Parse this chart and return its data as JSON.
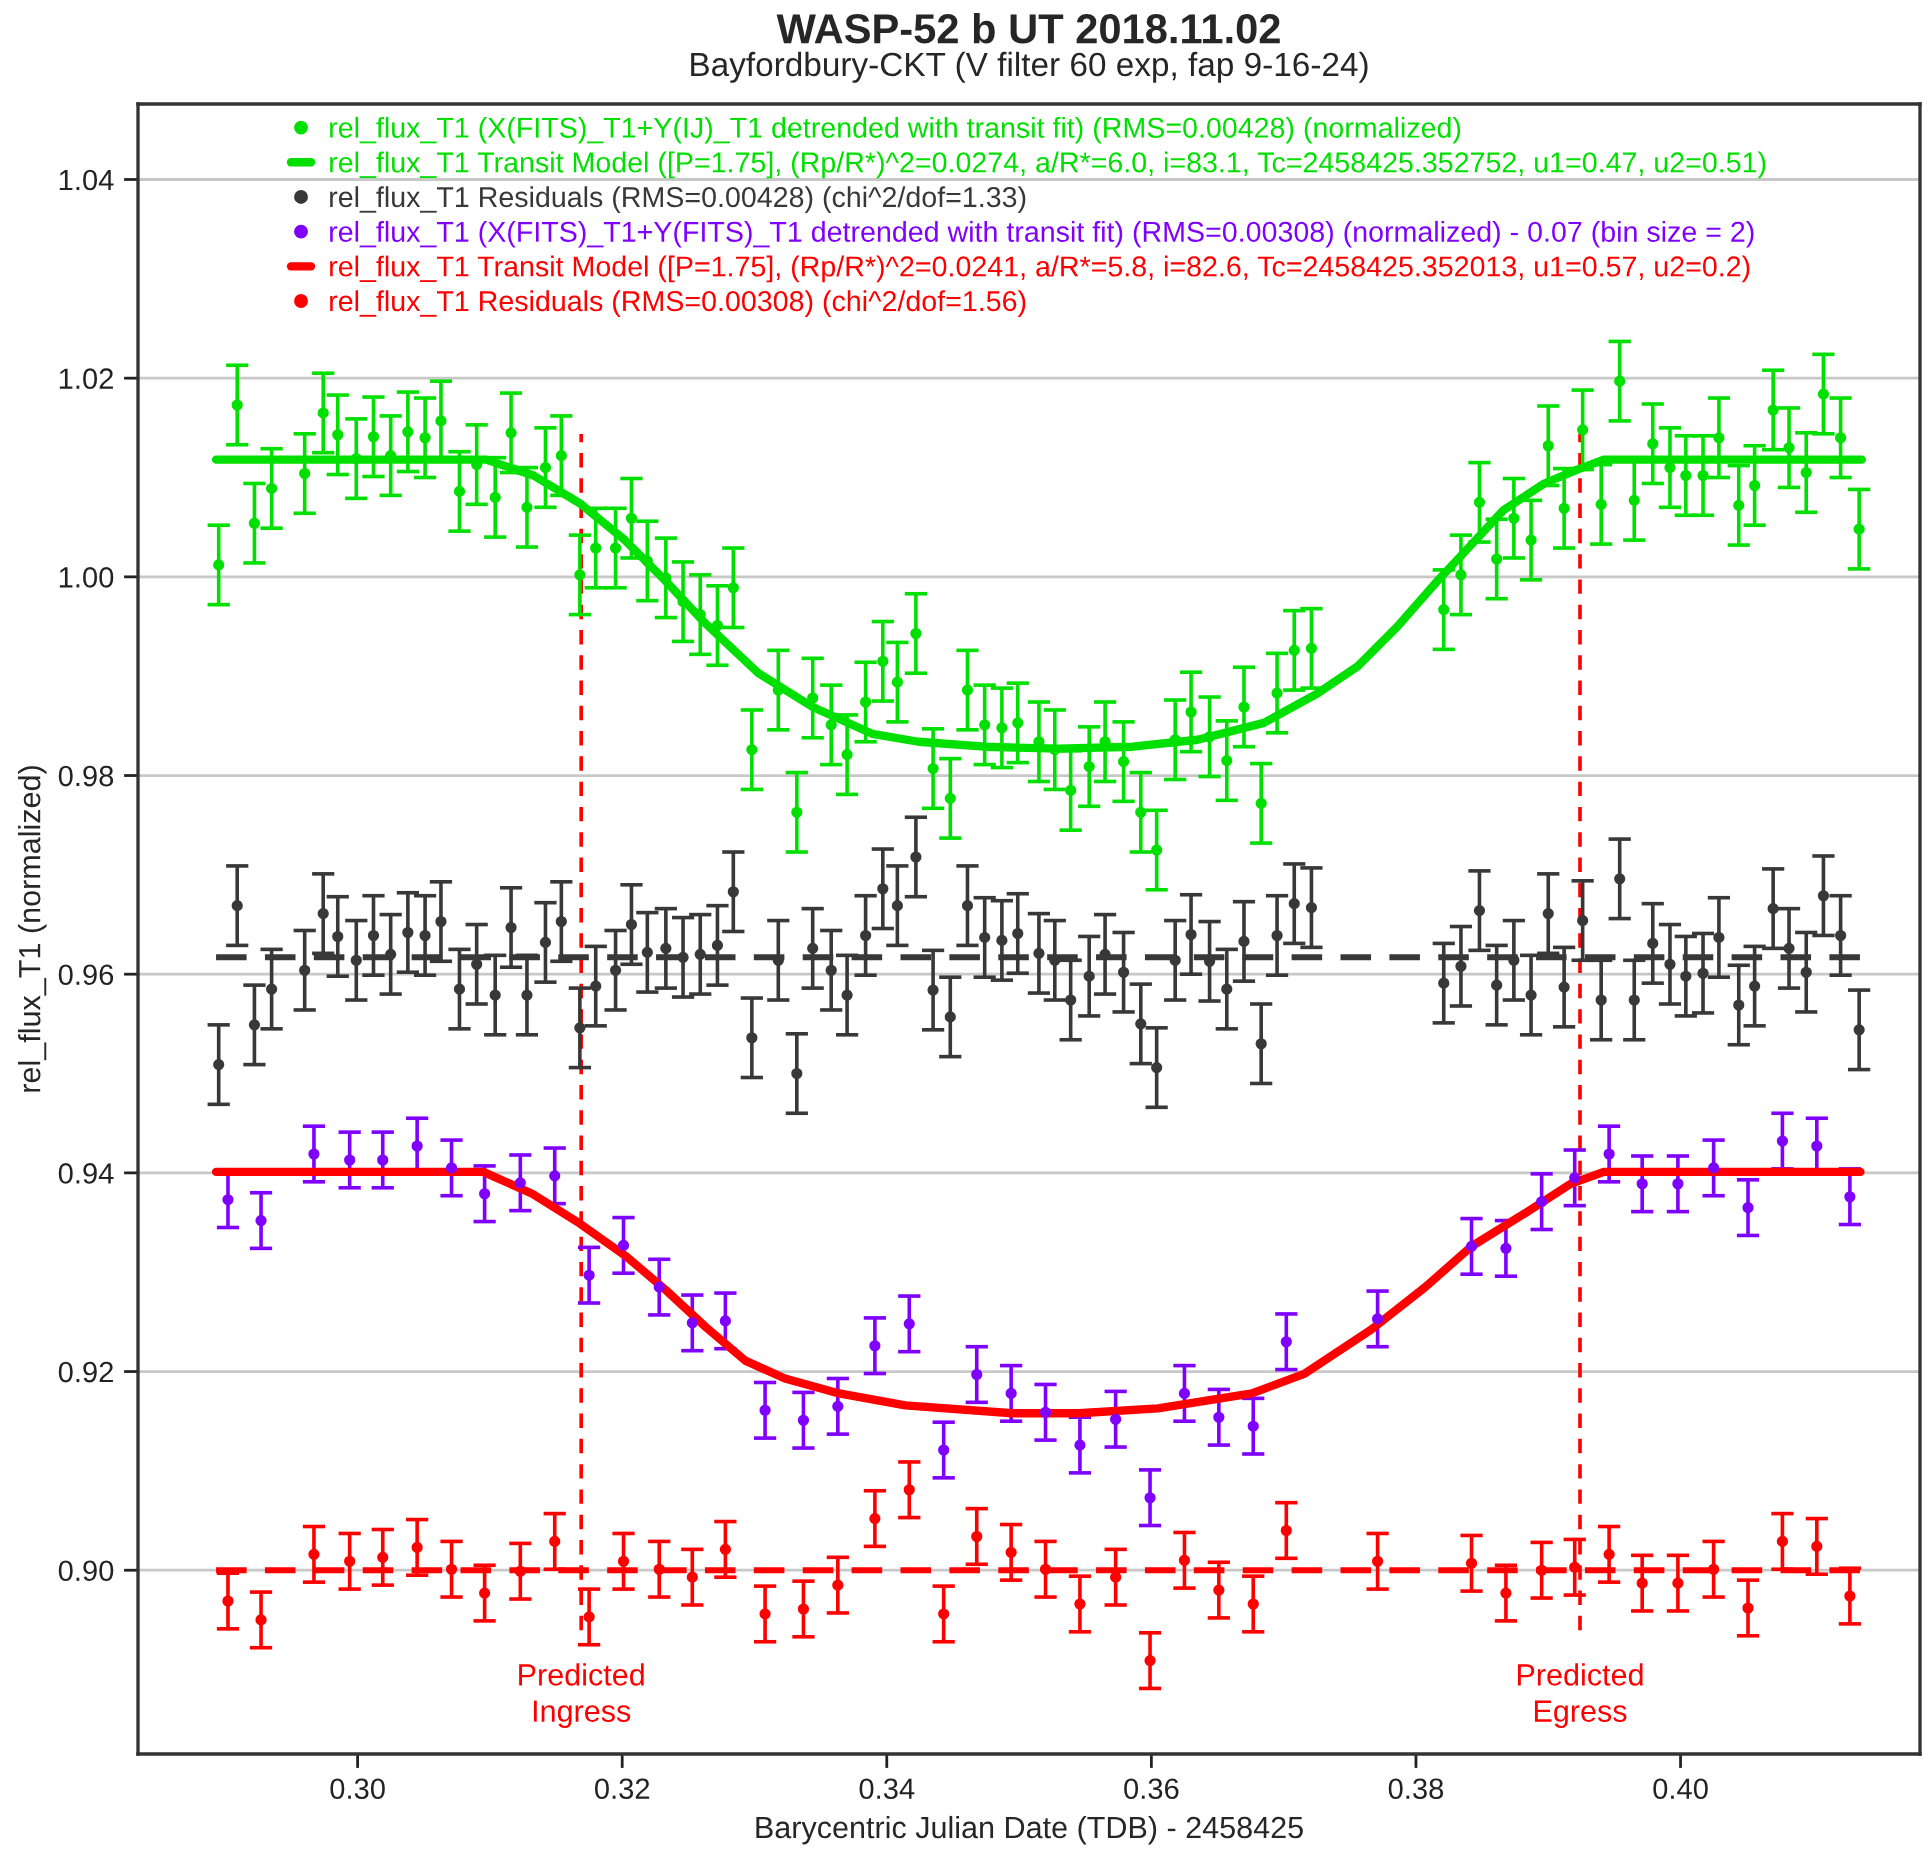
{
  "chart_data": {
    "type": "scatter",
    "title": "WASP-52 b UT 2018.11.02",
    "subtitle": "Bayfordbury-CKT (V filter 60 exp, fap 9-16-24)",
    "xlabel": "Barycentric Julian Date (TDB) - 2458425",
    "ylabel": "rel_flux_T1 (normalized)",
    "xlim": [
      0.2834,
      0.4181
    ],
    "ylim": [
      0.8815,
      1.0476
    ],
    "xticks": [
      {
        "value": 0.3,
        "label": "0.30"
      },
      {
        "value": 0.32,
        "label": "0.32"
      },
      {
        "value": 0.34,
        "label": "0.34"
      },
      {
        "value": 0.36,
        "label": "0.36"
      },
      {
        "value": 0.38,
        "label": "0.38"
      },
      {
        "value": 0.4,
        "label": "0.40"
      }
    ],
    "yticks": [
      {
        "value": 0.9,
        "label": "0.90"
      },
      {
        "value": 0.92,
        "label": "0.92"
      },
      {
        "value": 0.94,
        "label": "0.94"
      },
      {
        "value": 0.96,
        "label": "0.96"
      },
      {
        "value": 0.98,
        "label": "0.98"
      },
      {
        "value": 1.0,
        "label": "1.00"
      },
      {
        "value": 1.02,
        "label": "1.02"
      },
      {
        "value": 1.04,
        "label": "1.04"
      }
    ],
    "grid": "y",
    "legend": "top",
    "ref_lines": [
      {
        "axis": "x",
        "value": 0.3169,
        "label": "Predicted\nIngress",
        "color": "#ff0000",
        "line_style": "dashed"
      },
      {
        "axis": "x",
        "value": 0.3924,
        "label": "Predicted\nEgress",
        "color": "#ff0000",
        "line_style": "dashed"
      }
    ],
    "series": [
      {
        "name": "rel_flux_T1 (X(FITS)_T1+Y(IJ)_T1 detrended with transit fit) (RMS=0.00428) (normalized)",
        "marker": "circle",
        "color": "#00e000",
        "x": [
          0.2895,
          0.2909,
          0.2922,
          0.2935,
          0.296,
          0.2974,
          0.2985,
          0.2999,
          0.3012,
          0.3025,
          0.3038,
          0.3051,
          0.3063,
          0.3077,
          0.309,
          0.3104,
          0.3116,
          0.3128,
          0.3142,
          0.3154,
          0.3168,
          0.318,
          0.3195,
          0.3207,
          0.3219,
          0.3233,
          0.3246,
          0.3259,
          0.3272,
          0.3284,
          0.3298,
          0.3318,
          0.3332,
          0.3344,
          0.3358,
          0.337,
          0.3384,
          0.3397,
          0.3408,
          0.3422,
          0.3435,
          0.3448,
          0.3461,
          0.3474,
          0.3487,
          0.3499,
          0.3515,
          0.3527,
          0.3539,
          0.3553,
          0.3565,
          0.3579,
          0.3592,
          0.3604,
          0.3618,
          0.363,
          0.3644,
          0.3657,
          0.367,
          0.3683,
          0.3695,
          0.3708,
          0.3721,
          0.3821,
          0.3834,
          0.3848,
          0.3861,
          0.3874,
          0.3887,
          0.39,
          0.3912,
          0.3926,
          0.394,
          0.3954,
          0.3965,
          0.3979,
          0.3992,
          0.4004,
          0.4017,
          0.4029,
          0.4044,
          0.4056,
          0.407,
          0.4082,
          0.4095,
          0.4108,
          0.4121,
          0.4135
        ],
        "values": [
          1.0012,
          1.0173,
          1.0054,
          1.0089,
          1.0104,
          1.0165,
          1.0143,
          1.0119,
          1.0141,
          1.0122,
          1.0146,
          1.014,
          1.0157,
          1.0086,
          1.0113,
          1.008,
          1.0145,
          1.007,
          1.011,
          1.0122,
          1.0002,
          1.0029,
          1.0029,
          1.0059,
          1.0016,
          0.9999,
          0.9975,
          0.9962,
          0.9951,
          0.9989,
          0.9826,
          0.9886,
          0.9763,
          0.9878,
          0.9851,
          0.9821,
          0.9874,
          0.9915,
          0.9894,
          0.9943,
          0.9807,
          0.9777,
          0.9886,
          0.9851,
          0.9848,
          0.9853,
          0.9834,
          0.9826,
          0.9785,
          0.9809,
          0.9834,
          0.9814,
          0.9763,
          0.9725,
          0.9836,
          0.9864,
          0.9839,
          0.9815,
          0.9869,
          0.9772,
          0.9883,
          0.9926,
          0.9928,
          0.9967,
          1.0002,
          1.0075,
          1.0018,
          1.0059,
          1.0037,
          1.0132,
          1.0069,
          1.0148,
          1.0073,
          1.0197,
          1.0077,
          1.0134,
          1.011,
          1.0102,
          1.0102,
          1.014,
          1.0072,
          1.0092,
          1.0168,
          1.013,
          1.0105,
          1.0184,
          1.014,
          1.0048
        ],
        "errors": [
          0.004,
          0.004,
          0.004,
          0.004,
          0.004,
          0.004,
          0.004,
          0.004,
          0.004,
          0.004,
          0.004,
          0.004,
          0.004,
          0.004,
          0.004,
          0.004,
          0.004,
          0.004,
          0.004,
          0.004,
          0.004,
          0.004,
          0.004,
          0.004,
          0.004,
          0.004,
          0.004,
          0.004,
          0.004,
          0.004,
          0.004,
          0.004,
          0.004,
          0.004,
          0.004,
          0.004,
          0.004,
          0.004,
          0.004,
          0.004,
          0.004,
          0.004,
          0.004,
          0.004,
          0.004,
          0.004,
          0.004,
          0.004,
          0.004,
          0.004,
          0.004,
          0.004,
          0.004,
          0.004,
          0.004,
          0.004,
          0.004,
          0.004,
          0.004,
          0.004,
          0.004,
          0.004,
          0.004,
          0.004,
          0.004,
          0.004,
          0.004,
          0.004,
          0.004,
          0.004,
          0.004,
          0.004,
          0.004,
          0.004,
          0.004,
          0.004,
          0.004,
          0.004,
          0.004,
          0.004,
          0.004,
          0.004,
          0.004,
          0.004,
          0.004,
          0.004,
          0.004,
          0.004
        ]
      },
      {
        "name": "rel_flux_T1 Transit Model ([P=1.75], (Rp/R*)^2=0.0274, a/R*=6.0, i=83.1, Tc=2458425.352752, u1=0.47, u2=0.51)",
        "type": "line",
        "color": "#00e000",
        "line_style": "solid",
        "x": [
          0.2893,
          0.3097,
          0.3133,
          0.3168,
          0.3202,
          0.3232,
          0.3263,
          0.3303,
          0.3344,
          0.3389,
          0.3424,
          0.3474,
          0.353,
          0.3586,
          0.3635,
          0.3685,
          0.3726,
          0.3756,
          0.3786,
          0.3817,
          0.3836,
          0.3866,
          0.3897,
          0.3922,
          0.3942,
          0.4137
        ],
        "values": [
          1.0118,
          1.0118,
          1.0102,
          1.0074,
          1.0037,
          0.9997,
          0.9953,
          0.9903,
          0.9869,
          0.9842,
          0.9834,
          0.9829,
          0.9827,
          0.9829,
          0.9836,
          0.9853,
          0.9883,
          0.991,
          0.995,
          0.9997,
          1.0024,
          1.0067,
          1.0094,
          1.0108,
          1.0118,
          1.0118
        ]
      },
      {
        "name": "rel_flux_T1 Residuals (RMS=0.00428) (chi^2/dof=1.33)",
        "marker": "circle",
        "color": "#383838",
        "x": [
          0.2895,
          0.2909,
          0.2922,
          0.2935,
          0.296,
          0.2974,
          0.2985,
          0.2999,
          0.3012,
          0.3025,
          0.3038,
          0.3051,
          0.3063,
          0.3077,
          0.309,
          0.3104,
          0.3116,
          0.3128,
          0.3142,
          0.3154,
          0.3168,
          0.318,
          0.3195,
          0.3207,
          0.3219,
          0.3233,
          0.3246,
          0.3259,
          0.3272,
          0.3284,
          0.3298,
          0.3318,
          0.3332,
          0.3344,
          0.3358,
          0.337,
          0.3384,
          0.3397,
          0.3408,
          0.3422,
          0.3435,
          0.3448,
          0.3461,
          0.3474,
          0.3487,
          0.3499,
          0.3515,
          0.3527,
          0.3539,
          0.3553,
          0.3565,
          0.3579,
          0.3592,
          0.3604,
          0.3618,
          0.363,
          0.3644,
          0.3657,
          0.367,
          0.3683,
          0.3695,
          0.3708,
          0.3721,
          0.3821,
          0.3834,
          0.3848,
          0.3861,
          0.3874,
          0.3887,
          0.39,
          0.3912,
          0.3926,
          0.394,
          0.3954,
          0.3965,
          0.3979,
          0.3992,
          0.4004,
          0.4017,
          0.4029,
          0.4044,
          0.4056,
          0.407,
          0.4082,
          0.4095,
          0.4108,
          0.4121,
          0.4135
        ],
        "values": [
          0.9509,
          0.9669,
          0.9549,
          0.9585,
          0.9604,
          0.9661,
          0.9638,
          0.9614,
          0.9639,
          0.962,
          0.9642,
          0.9639,
          0.9653,
          0.9585,
          0.961,
          0.9579,
          0.9647,
          0.9579,
          0.9632,
          0.9653,
          0.9546,
          0.9588,
          0.9604,
          0.965,
          0.9622,
          0.9626,
          0.9617,
          0.962,
          0.9629,
          0.9683,
          0.9536,
          0.9614,
          0.95,
          0.9626,
          0.9604,
          0.9579,
          0.9639,
          0.9686,
          0.9669,
          0.9718,
          0.9584,
          0.9557,
          0.9669,
          0.9637,
          0.9634,
          0.9641,
          0.9621,
          0.9614,
          0.9574,
          0.9598,
          0.962,
          0.9602,
          0.955,
          0.9506,
          0.9614,
          0.964,
          0.9613,
          0.9585,
          0.9633,
          0.953,
          0.9639,
          0.9671,
          0.9667,
          0.9591,
          0.9608,
          0.9664,
          0.9589,
          0.9614,
          0.9579,
          0.9661,
          0.9587,
          0.9654,
          0.9574,
          0.9696,
          0.9574,
          0.9631,
          0.961,
          0.9598,
          0.9601,
          0.9637,
          0.9569,
          0.9588,
          0.9666,
          0.9626,
          0.9602,
          0.9679,
          0.9639,
          0.9544
        ],
        "errors": [
          0.004,
          0.004,
          0.004,
          0.004,
          0.004,
          0.004,
          0.004,
          0.004,
          0.004,
          0.004,
          0.004,
          0.004,
          0.004,
          0.004,
          0.004,
          0.004,
          0.004,
          0.004,
          0.004,
          0.004,
          0.004,
          0.004,
          0.004,
          0.004,
          0.004,
          0.004,
          0.004,
          0.004,
          0.004,
          0.004,
          0.004,
          0.004,
          0.004,
          0.004,
          0.004,
          0.004,
          0.004,
          0.004,
          0.004,
          0.004,
          0.004,
          0.004,
          0.004,
          0.004,
          0.004,
          0.004,
          0.004,
          0.004,
          0.004,
          0.004,
          0.004,
          0.004,
          0.004,
          0.004,
          0.004,
          0.004,
          0.004,
          0.004,
          0.004,
          0.004,
          0.004,
          0.004,
          0.004,
          0.004,
          0.004,
          0.004,
          0.004,
          0.004,
          0.004,
          0.004,
          0.004,
          0.004,
          0.004,
          0.004,
          0.004,
          0.004,
          0.004,
          0.004,
          0.004,
          0.004,
          0.004,
          0.004,
          0.004,
          0.004,
          0.004,
          0.004,
          0.004,
          0.004
        ]
      },
      {
        "type": "line",
        "color": "#383838",
        "line_style": "dashed",
        "x": [
          0.2893,
          0.4137
        ],
        "values": [
          0.9617,
          0.9617
        ]
      },
      {
        "name": "rel_flux_T1 (X(FITS)_T1+Y(FITS)_T1 detrended with transit fit) (RMS=0.00308) (normalized) - 0.07 (bin size = 2)",
        "marker": "circle",
        "color": "#8000ff",
        "x": [
          0.2902,
          0.2927,
          0.2967,
          0.2994,
          0.3019,
          0.3045,
          0.3071,
          0.3096,
          0.3123,
          0.3149,
          0.3175,
          0.3201,
          0.3228,
          0.3253,
          0.3278,
          0.3308,
          0.3337,
          0.3363,
          0.3391,
          0.3417,
          0.3443,
          0.3468,
          0.3494,
          0.352,
          0.3546,
          0.3573,
          0.3599,
          0.3625,
          0.3651,
          0.3677,
          0.3702,
          0.3771,
          0.3842,
          0.3868,
          0.3895,
          0.392,
          0.3946,
          0.3971,
          0.3998,
          0.4025,
          0.4051,
          0.4077,
          0.4103,
          0.4128
        ],
        "values": [
          0.9373,
          0.9352,
          0.9419,
          0.9413,
          0.9413,
          0.9427,
          0.9405,
          0.9379,
          0.939,
          0.9397,
          0.9297,
          0.9327,
          0.9285,
          0.9249,
          0.9251,
          0.9161,
          0.9151,
          0.9165,
          0.9226,
          0.9248,
          0.9121,
          0.9197,
          0.9178,
          0.9159,
          0.9126,
          0.9152,
          0.9073,
          0.9178,
          0.9154,
          0.9145,
          0.923,
          0.9253,
          0.9326,
          0.9324,
          0.9371,
          0.9395,
          0.9419,
          0.9389,
          0.9389,
          0.9405,
          0.9365,
          0.9432,
          0.9427,
          0.9376
        ],
        "errors": [
          0.0028,
          0.0028,
          0.0028,
          0.0028,
          0.0028,
          0.0028,
          0.0028,
          0.0028,
          0.0028,
          0.0028,
          0.0028,
          0.0028,
          0.0028,
          0.0028,
          0.0028,
          0.0028,
          0.0028,
          0.0028,
          0.0028,
          0.0028,
          0.0028,
          0.0028,
          0.0028,
          0.0028,
          0.0028,
          0.0028,
          0.0028,
          0.0028,
          0.0028,
          0.0028,
          0.0028,
          0.0028,
          0.0028,
          0.0028,
          0.0028,
          0.0028,
          0.0028,
          0.0028,
          0.0028,
          0.0028,
          0.0028,
          0.0028,
          0.0028,
          0.0028
        ]
      },
      {
        "name": "rel_flux_T1 Transit Model ([P=1.75], (Rp/R*)^2=0.0241, a/R*=5.8, i=82.6, Tc=2458425.352013, u1=0.57, u2=0.2)",
        "type": "line",
        "color": "#ff0000",
        "line_style": "solid",
        "x": [
          0.2893,
          0.3095,
          0.3132,
          0.3168,
          0.3203,
          0.3233,
          0.3263,
          0.3293,
          0.3323,
          0.3364,
          0.3414,
          0.3495,
          0.3545,
          0.3605,
          0.3676,
          0.3716,
          0.3766,
          0.3807,
          0.3842,
          0.3882,
          0.3917,
          0.3942,
          0.4136
        ],
        "values": [
          0.9401,
          0.9401,
          0.9379,
          0.9349,
          0.9316,
          0.9282,
          0.9245,
          0.9211,
          0.9193,
          0.9178,
          0.9166,
          0.9158,
          0.9158,
          0.9163,
          0.9178,
          0.9198,
          0.9242,
          0.9285,
          0.9326,
          0.9359,
          0.9389,
          0.9401,
          0.9401
        ]
      },
      {
        "name": "rel_flux_T1 Residuals (RMS=0.00308) (chi^2/dof=1.56)",
        "marker": "circle",
        "color": "#ff0000",
        "x": [
          0.2902,
          0.2927,
          0.2967,
          0.2994,
          0.3019,
          0.3045,
          0.3071,
          0.3096,
          0.3123,
          0.3149,
          0.3175,
          0.3201,
          0.3228,
          0.3253,
          0.3278,
          0.3308,
          0.3337,
          0.3363,
          0.3391,
          0.3417,
          0.3443,
          0.3468,
          0.3494,
          0.352,
          0.3546,
          0.3573,
          0.3599,
          0.3625,
          0.3651,
          0.3677,
          0.3702,
          0.3771,
          0.3842,
          0.3868,
          0.3895,
          0.392,
          0.3946,
          0.3971,
          0.3998,
          0.4025,
          0.4051,
          0.4077,
          0.4103,
          0.4128
        ],
        "values": [
          0.8969,
          0.895,
          0.9016,
          0.9009,
          0.9013,
          0.9023,
          0.9001,
          0.8977,
          0.8999,
          0.9029,
          0.8953,
          0.9009,
          0.9001,
          0.8993,
          0.9021,
          0.8956,
          0.8961,
          0.8985,
          0.9052,
          0.9081,
          0.8956,
          0.9034,
          0.9018,
          0.9001,
          0.8966,
          0.8993,
          0.8909,
          0.901,
          0.898,
          0.8966,
          0.904,
          0.9009,
          0.9007,
          0.8977,
          0.9,
          0.9003,
          0.9016,
          0.8987,
          0.8987,
          0.9001,
          0.8962,
          0.9029,
          0.9024,
          0.8974
        ],
        "errors": [
          0.0028,
          0.0028,
          0.0028,
          0.0028,
          0.0028,
          0.0028,
          0.0028,
          0.0028,
          0.0028,
          0.0028,
          0.0028,
          0.0028,
          0.0028,
          0.0028,
          0.0028,
          0.0028,
          0.0028,
          0.0028,
          0.0028,
          0.0028,
          0.0028,
          0.0028,
          0.0028,
          0.0028,
          0.0028,
          0.0028,
          0.0028,
          0.0028,
          0.0028,
          0.0028,
          0.0028,
          0.0028,
          0.0028,
          0.0028,
          0.0028,
          0.0028,
          0.0028,
          0.0028,
          0.0028,
          0.0028,
          0.0028,
          0.0028,
          0.0028,
          0.0028
        ]
      },
      {
        "type": "line",
        "color": "#ff0000",
        "line_style": "dashed",
        "x": [
          0.2893,
          0.4137
        ],
        "values": [
          0.9,
          0.9
        ]
      }
    ]
  }
}
